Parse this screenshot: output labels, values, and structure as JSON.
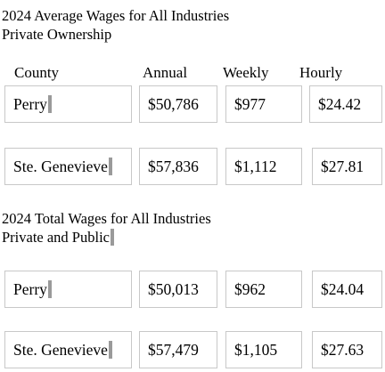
{
  "section1": {
    "title": "2024 Average Wages for All Industries",
    "subtitle": "Private Ownership",
    "columns": [
      "County",
      "Annual",
      "Weekly",
      "Hourly"
    ],
    "rows": [
      {
        "county": "Perry",
        "annual": "$50,786",
        "weekly": "$977",
        "hourly": "$24.42"
      },
      {
        "county": "Ste. Genevieve",
        "annual": "$57,836",
        "weekly": "$1,112",
        "hourly": "$27.81"
      }
    ]
  },
  "section2": {
    "title": "2024 Total Wages for All Industries",
    "subtitle": "Private and Public",
    "rows": [
      {
        "county": "Perry",
        "annual": "$50,013",
        "weekly": "$962",
        "hourly": "$24.04"
      },
      {
        "county": "Ste. Genevieve",
        "annual": "$57,479",
        "weekly": "$1,105",
        "hourly": "$27.63"
      }
    ]
  }
}
